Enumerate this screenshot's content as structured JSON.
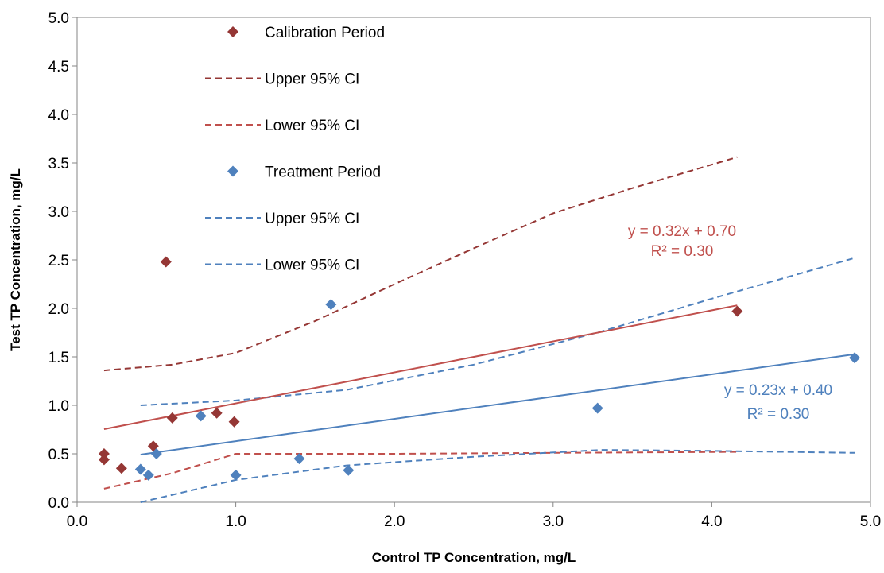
{
  "chart_data": {
    "type": "scatter",
    "xlabel": "Control TP Concentration, mg/L",
    "ylabel": "Test TP Concentration, mg/L",
    "xlim": [
      0,
      5
    ],
    "ylim": [
      0,
      5
    ],
    "xticks": [
      "0.0",
      "1.0",
      "2.0",
      "3.0",
      "4.0",
      "5.0"
    ],
    "yticks": [
      "0.0",
      "0.5",
      "1.0",
      "1.5",
      "2.0",
      "2.5",
      "3.0",
      "3.5",
      "4.0",
      "4.5",
      "5.0"
    ],
    "grid": false,
    "legend_position": "upper-left-inside",
    "series": [
      {
        "name": "Calibration Period",
        "kind": "points",
        "marker": "diamond",
        "color": "#953735",
        "x": [
          0.17,
          0.17,
          0.28,
          0.48,
          0.56,
          0.6,
          0.88,
          0.99,
          4.16
        ],
        "y": [
          0.5,
          0.44,
          0.35,
          0.58,
          2.48,
          0.87,
          0.92,
          0.83,
          1.97
        ]
      },
      {
        "name": "Upper 95% CI",
        "kind": "dashed",
        "color": "#953735",
        "x": [
          0.17,
          0.6,
          1.0,
          1.5,
          2.0,
          2.5,
          3.0,
          3.5,
          4.16
        ],
        "y": [
          1.36,
          1.42,
          1.54,
          1.87,
          2.25,
          2.62,
          2.98,
          3.24,
          3.56
        ]
      },
      {
        "name": "Lower 95% CI",
        "kind": "dashed",
        "color": "#C0504D",
        "x": [
          0.17,
          0.6,
          1.0,
          2.0,
          3.0,
          4.16
        ],
        "y": [
          0.14,
          0.3,
          0.5,
          0.5,
          0.51,
          0.52
        ]
      },
      {
        "name": "Treatment Period",
        "kind": "points",
        "marker": "diamond",
        "color": "#4F81BD",
        "x": [
          0.4,
          0.45,
          0.5,
          0.78,
          1.0,
          1.4,
          1.6,
          1.71,
          3.28,
          4.9
        ],
        "y": [
          0.34,
          0.28,
          0.5,
          0.89,
          0.28,
          0.45,
          2.04,
          0.33,
          0.97,
          1.49
        ]
      },
      {
        "name": "Upper 95% CI",
        "kind": "dashed",
        "color": "#4F81BD",
        "x": [
          0.4,
          1.0,
          1.7,
          2.5,
          3.3,
          4.0,
          4.9
        ],
        "y": [
          1.0,
          1.05,
          1.16,
          1.42,
          1.76,
          2.1,
          2.52
        ]
      },
      {
        "name": "Lower 95% CI",
        "kind": "dashed",
        "color": "#4F81BD",
        "x": [
          0.4,
          1.0,
          1.7,
          2.5,
          3.3,
          4.0,
          4.9
        ],
        "y": [
          0.0,
          0.23,
          0.38,
          0.47,
          0.54,
          0.53,
          0.51
        ]
      }
    ],
    "trendlines": [
      {
        "series": "Calibration Period",
        "color": "#C0504D",
        "slope": 0.32,
        "intercept": 0.7,
        "x": [
          0.17,
          4.16
        ],
        "equation": "y = 0.32x + 0.70",
        "r2": "R² = 0.30"
      },
      {
        "series": "Treatment Period",
        "color": "#4F81BD",
        "slope": 0.23,
        "intercept": 0.4,
        "x": [
          0.4,
          4.9
        ],
        "equation": "y = 0.23x + 0.40",
        "r2": "R² = 0.30"
      }
    ]
  }
}
